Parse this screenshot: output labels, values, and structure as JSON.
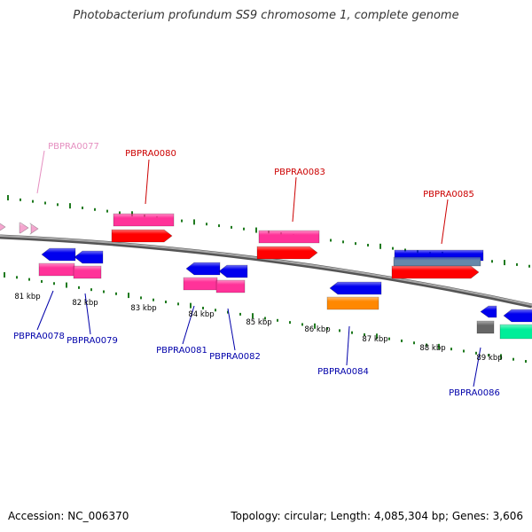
{
  "title": "Photobacterium profundum SS9 chromosome 1, complete genome",
  "footer": {
    "accession": "Accession: NC_006370",
    "stats": "Topology: circular; Length: 4,085,304 bp; Genes: 3,606"
  },
  "colors": {
    "backbone": "#888888",
    "ticks": "#1f7a1f",
    "gene_label_top": "#cc0000",
    "gene_label_bottom": "#0000aa",
    "gene_label_faded": "#e58fc0",
    "pink": "#ff3399",
    "red": "#ff0000",
    "blue": "#0000ee",
    "steel": "#6688aa",
    "orange": "#ff8800",
    "gray": "#666666",
    "green": "#00ee99",
    "light_pink": "#f4a6cf"
  },
  "kbp_labels": [
    "81 kbp",
    "82 kbp",
    "83 kbp",
    "84 kbp",
    "85 kbp",
    "86 kbp",
    "87 kbp",
    "88 kbp",
    "89 kbp"
  ],
  "gene_labels": [
    {
      "id": "g77",
      "text": "PBPRA0077",
      "style": "faded"
    },
    {
      "id": "g78",
      "text": "PBPRA0078",
      "style": "bottom"
    },
    {
      "id": "g79",
      "text": "PBPRA0079",
      "style": "bottom"
    },
    {
      "id": "g80",
      "text": "PBPRA0080",
      "style": "top"
    },
    {
      "id": "g81",
      "text": "PBPRA0081",
      "style": "bottom"
    },
    {
      "id": "g82",
      "text": "PBPRA0082",
      "style": "bottom"
    },
    {
      "id": "g83",
      "text": "PBPRA0083",
      "style": "top"
    },
    {
      "id": "g84",
      "text": "PBPRA0084",
      "style": "bottom"
    },
    {
      "id": "g85",
      "text": "PBPRA0085",
      "style": "top"
    },
    {
      "id": "g86",
      "text": "PBPRA0086",
      "style": "bottom"
    }
  ]
}
